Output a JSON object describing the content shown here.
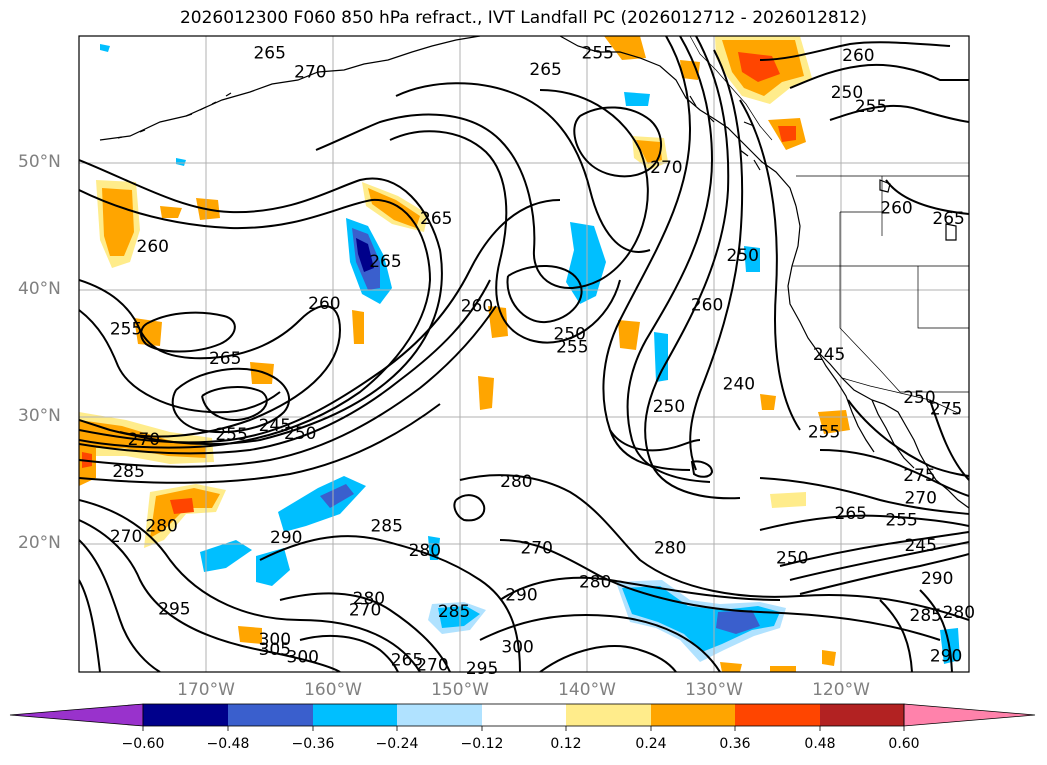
{
  "title": "2026012300 F060 850 hPa refract., IVT Landfall PC (2026012712 - 2026012812)",
  "lat_labels": [
    "50°N",
    "40°N",
    "30°N",
    "20°N"
  ],
  "lon_labels": [
    "170°W",
    "160°W",
    "150°W",
    "140°W",
    "130°W",
    "120°W"
  ],
  "colorbar": {
    "ticks": [
      "−0.60",
      "−0.48",
      "−0.36",
      "−0.24",
      "−0.12",
      "0.12",
      "0.24",
      "0.36",
      "0.48",
      "0.60"
    ],
    "colors": {
      "under": "#9932cc",
      "b1": "#00008b",
      "b2": "#3a5fcd",
      "b3": "#00bfff",
      "b4": "#b0e2ff",
      "b5": "#ffffff",
      "b6": "#ffec8b",
      "b7": "#ffa500",
      "b8": "#ff4500",
      "b9": "#b22222",
      "over": "#ff82ab"
    }
  },
  "contour_labels": [
    {
      "text": "265",
      "lon": -165.0,
      "lat": 58.7
    },
    {
      "text": "270",
      "lon": -161.8,
      "lat": 57.2
    },
    {
      "text": "255",
      "lon": -139.2,
      "lat": 58.7
    },
    {
      "text": "265",
      "lon": -143.3,
      "lat": 57.4
    },
    {
      "text": "260",
      "lon": -118.7,
      "lat": 58.5
    },
    {
      "text": "250",
      "lon": -119.6,
      "lat": 55.6
    },
    {
      "text": "255",
      "lon": -117.7,
      "lat": 54.5
    },
    {
      "text": "270",
      "lon": -133.8,
      "lat": 49.7
    },
    {
      "text": "265",
      "lon": -151.9,
      "lat": 45.7
    },
    {
      "text": "260",
      "lon": -115.7,
      "lat": 46.5
    },
    {
      "text": "265",
      "lon": -111.6,
      "lat": 45.7
    },
    {
      "text": "260",
      "lon": -174.2,
      "lat": 43.5
    },
    {
      "text": "265",
      "lon": -155.9,
      "lat": 42.3
    },
    {
      "text": "250",
      "lon": -127.8,
      "lat": 42.8
    },
    {
      "text": "260",
      "lon": -148.7,
      "lat": 38.8
    },
    {
      "text": "260",
      "lon": -160.7,
      "lat": 39.0
    },
    {
      "text": "260",
      "lon": -130.6,
      "lat": 38.9
    },
    {
      "text": "255",
      "lon": -176.3,
      "lat": 37.0
    },
    {
      "text": "250",
      "lon": -141.4,
      "lat": 36.6
    },
    {
      "text": "255",
      "lon": -141.2,
      "lat": 35.6
    },
    {
      "text": "265",
      "lon": -168.5,
      "lat": 34.7
    },
    {
      "text": "245",
      "lon": -121.0,
      "lat": 35.0
    },
    {
      "text": "240",
      "lon": -128.1,
      "lat": 32.7
    },
    {
      "text": "250",
      "lon": -133.6,
      "lat": 30.9
    },
    {
      "text": "250",
      "lon": -113.9,
      "lat": 31.6
    },
    {
      "text": "275",
      "lon": -111.8,
      "lat": 30.7
    },
    {
      "text": "245",
      "lon": -164.6,
      "lat": 29.4
    },
    {
      "text": "250",
      "lon": -162.6,
      "lat": 28.8
    },
    {
      "text": "270",
      "lon": -174.9,
      "lat": 28.3
    },
    {
      "text": "255",
      "lon": -168.0,
      "lat": 28.7
    },
    {
      "text": "255",
      "lon": -121.4,
      "lat": 28.9
    },
    {
      "text": "285",
      "lon": -176.1,
      "lat": 25.8
    },
    {
      "text": "275",
      "lon": -113.9,
      "lat": 25.5
    },
    {
      "text": "280",
      "lon": -145.6,
      "lat": 25.0
    },
    {
      "text": "270",
      "lon": -113.8,
      "lat": 23.7
    },
    {
      "text": "280",
      "lon": -173.5,
      "lat": 21.5
    },
    {
      "text": "265",
      "lon": -119.3,
      "lat": 22.5
    },
    {
      "text": "255",
      "lon": -115.3,
      "lat": 22.0
    },
    {
      "text": "270",
      "lon": -176.3,
      "lat": 20.7
    },
    {
      "text": "290",
      "lon": -163.7,
      "lat": 20.6
    },
    {
      "text": "285",
      "lon": -155.8,
      "lat": 21.5
    },
    {
      "text": "245",
      "lon": -113.8,
      "lat": 20.0
    },
    {
      "text": "280",
      "lon": -152.8,
      "lat": 19.6
    },
    {
      "text": "280",
      "lon": -133.5,
      "lat": 19.8
    },
    {
      "text": "270",
      "lon": -144.0,
      "lat": 19.8
    },
    {
      "text": "250",
      "lon": -123.9,
      "lat": 19.0
    },
    {
      "text": "280",
      "lon": -139.4,
      "lat": 17.1
    },
    {
      "text": "290",
      "lon": -112.5,
      "lat": 17.4
    },
    {
      "text": "295",
      "lon": -172.5,
      "lat": 15.0
    },
    {
      "text": "290",
      "lon": -145.2,
      "lat": 16.1
    },
    {
      "text": "280",
      "lon": -157.2,
      "lat": 15.8
    },
    {
      "text": "285",
      "lon": -150.5,
      "lat": 14.8
    },
    {
      "text": "270",
      "lon": -157.5,
      "lat": 14.9
    },
    {
      "text": "285",
      "lon": -113.4,
      "lat": 14.5
    },
    {
      "text": "280",
      "lon": -110.8,
      "lat": 14.7
    },
    {
      "text": "300",
      "lon": -145.5,
      "lat": 12.0
    },
    {
      "text": "300",
      "lon": -164.6,
      "lat": 12.6
    },
    {
      "text": "305",
      "lon": -164.6,
      "lat": 11.8
    },
    {
      "text": "300",
      "lon": -162.4,
      "lat": 11.2
    },
    {
      "text": "265",
      "lon": -154.2,
      "lat": 11.0
    },
    {
      "text": "270",
      "lon": -152.2,
      "lat": 10.6
    },
    {
      "text": "295",
      "lon": -148.3,
      "lat": 10.3
    },
    {
      "text": "290",
      "lon": -111.8,
      "lat": 11.3
    }
  ]
}
